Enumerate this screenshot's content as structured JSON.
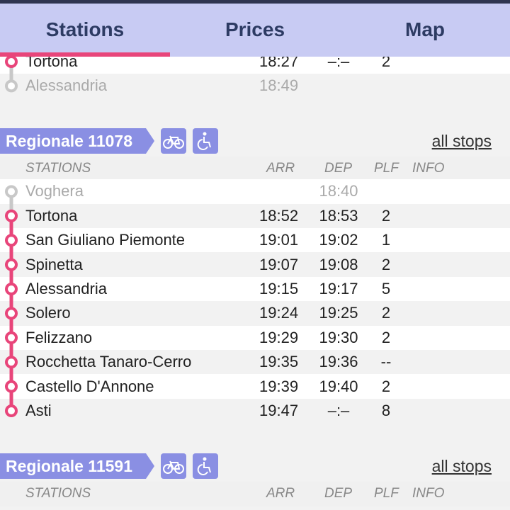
{
  "tabs": [
    {
      "label": "Stations",
      "selected": true
    },
    {
      "label": "Prices",
      "selected": false
    },
    {
      "label": "Map",
      "selected": false
    }
  ],
  "trains": [
    {
      "stops": [
        {
          "station": "Tortona",
          "arr": "18:27",
          "dep": "–:–",
          "plf": "2"
        },
        {
          "station": "Alessandria",
          "arr": "18:49",
          "inactive": true
        }
      ]
    },
    {
      "name": "Regionale 11078",
      "link": "all stops",
      "columns": [
        "STATIONS",
        "ARR",
        "DEP",
        "PLF",
        "INFO"
      ],
      "stops": [
        {
          "station": "Voghera",
          "dep": "18:40",
          "inactive": true
        },
        {
          "station": "Tortona",
          "arr": "18:52",
          "dep": "18:53",
          "plf": "2"
        },
        {
          "station": "San Giuliano Piemonte",
          "arr": "19:01",
          "dep": "19:02",
          "plf": "1"
        },
        {
          "station": "Spinetta",
          "arr": "19:07",
          "dep": "19:08",
          "plf": "2"
        },
        {
          "station": "Alessandria",
          "arr": "19:15",
          "dep": "19:17",
          "plf": "5"
        },
        {
          "station": "Solero",
          "arr": "19:24",
          "dep": "19:25",
          "plf": "2"
        },
        {
          "station": "Felizzano",
          "arr": "19:29",
          "dep": "19:30",
          "plf": "2"
        },
        {
          "station": "Rocchetta Tanaro-Cerro",
          "arr": "19:35",
          "dep": "19:36",
          "plf": "--"
        },
        {
          "station": "Castello D'Annone",
          "arr": "19:39",
          "dep": "19:40",
          "plf": "2"
        },
        {
          "station": "Asti",
          "arr": "19:47",
          "dep": "–:–",
          "plf": "8"
        }
      ]
    },
    {
      "name": "Regionale 11591",
      "link": "all stops",
      "columns": [
        "STATIONS",
        "ARR",
        "DEP",
        "PLF",
        "INFO"
      ],
      "stops": []
    }
  ]
}
